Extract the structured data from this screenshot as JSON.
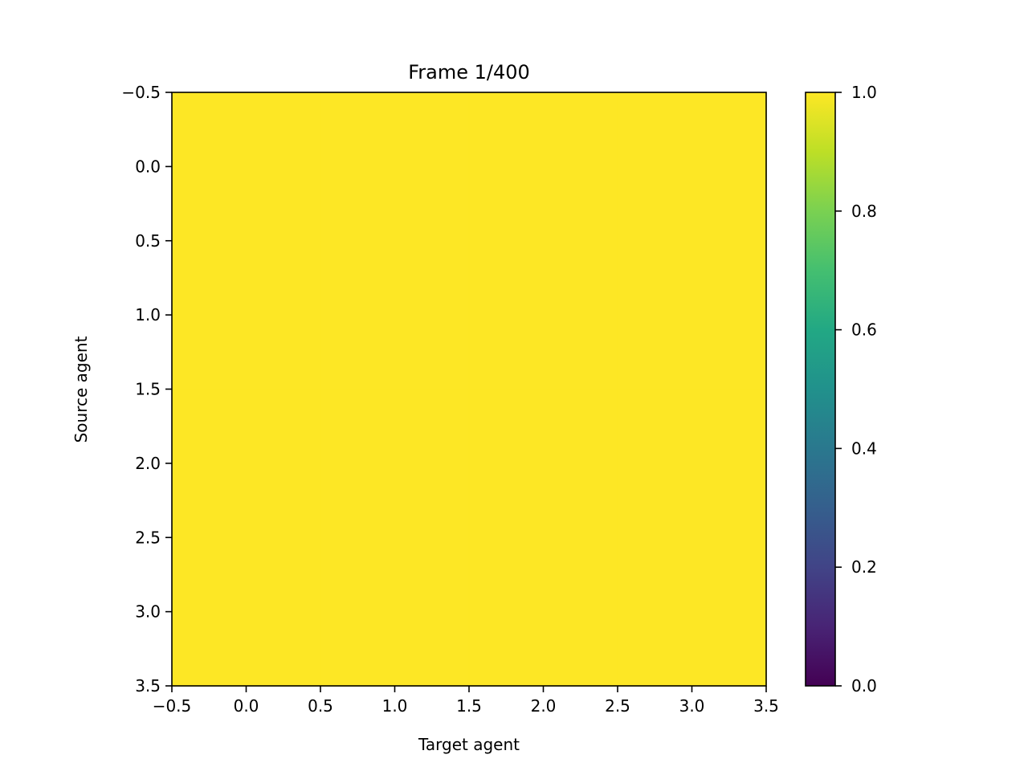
{
  "chart_data": {
    "type": "heatmap",
    "title": "Frame 1/400",
    "xlabel": "Target agent",
    "ylabel": "Source agent",
    "xlim": [
      -0.5,
      3.5
    ],
    "ylim": [
      3.5,
      -0.5
    ],
    "y_inverted": true,
    "xticks": [
      -0.5,
      0.0,
      0.5,
      1.0,
      1.5,
      2.0,
      2.5,
      3.0,
      3.5
    ],
    "yticks": [
      -0.5,
      0.0,
      0.5,
      1.0,
      1.5,
      2.0,
      2.5,
      3.0,
      3.5
    ],
    "xtick_labels": [
      "−0.5",
      "0.0",
      "0.5",
      "1.0",
      "1.5",
      "2.0",
      "2.5",
      "3.0",
      "3.5"
    ],
    "ytick_labels": [
      "−0.5",
      "0.0",
      "0.5",
      "1.0",
      "1.5",
      "2.0",
      "2.5",
      "3.0",
      "3.5"
    ],
    "x": [
      0,
      1,
      2,
      3
    ],
    "y": [
      0,
      1,
      2,
      3
    ],
    "values": [
      [
        1.0,
        1.0,
        1.0,
        1.0
      ],
      [
        1.0,
        1.0,
        1.0,
        1.0
      ],
      [
        1.0,
        1.0,
        1.0,
        1.0
      ],
      [
        1.0,
        1.0,
        1.0,
        1.0
      ]
    ],
    "colormap": "viridis",
    "colorbar": {
      "range": [
        0.0,
        1.0
      ],
      "ticks": [
        0.0,
        0.2,
        0.4,
        0.6,
        0.8,
        1.0
      ],
      "tick_labels": [
        "0.0",
        "0.2",
        "0.4",
        "0.6",
        "0.8",
        "1.0"
      ]
    },
    "grid": false
  }
}
